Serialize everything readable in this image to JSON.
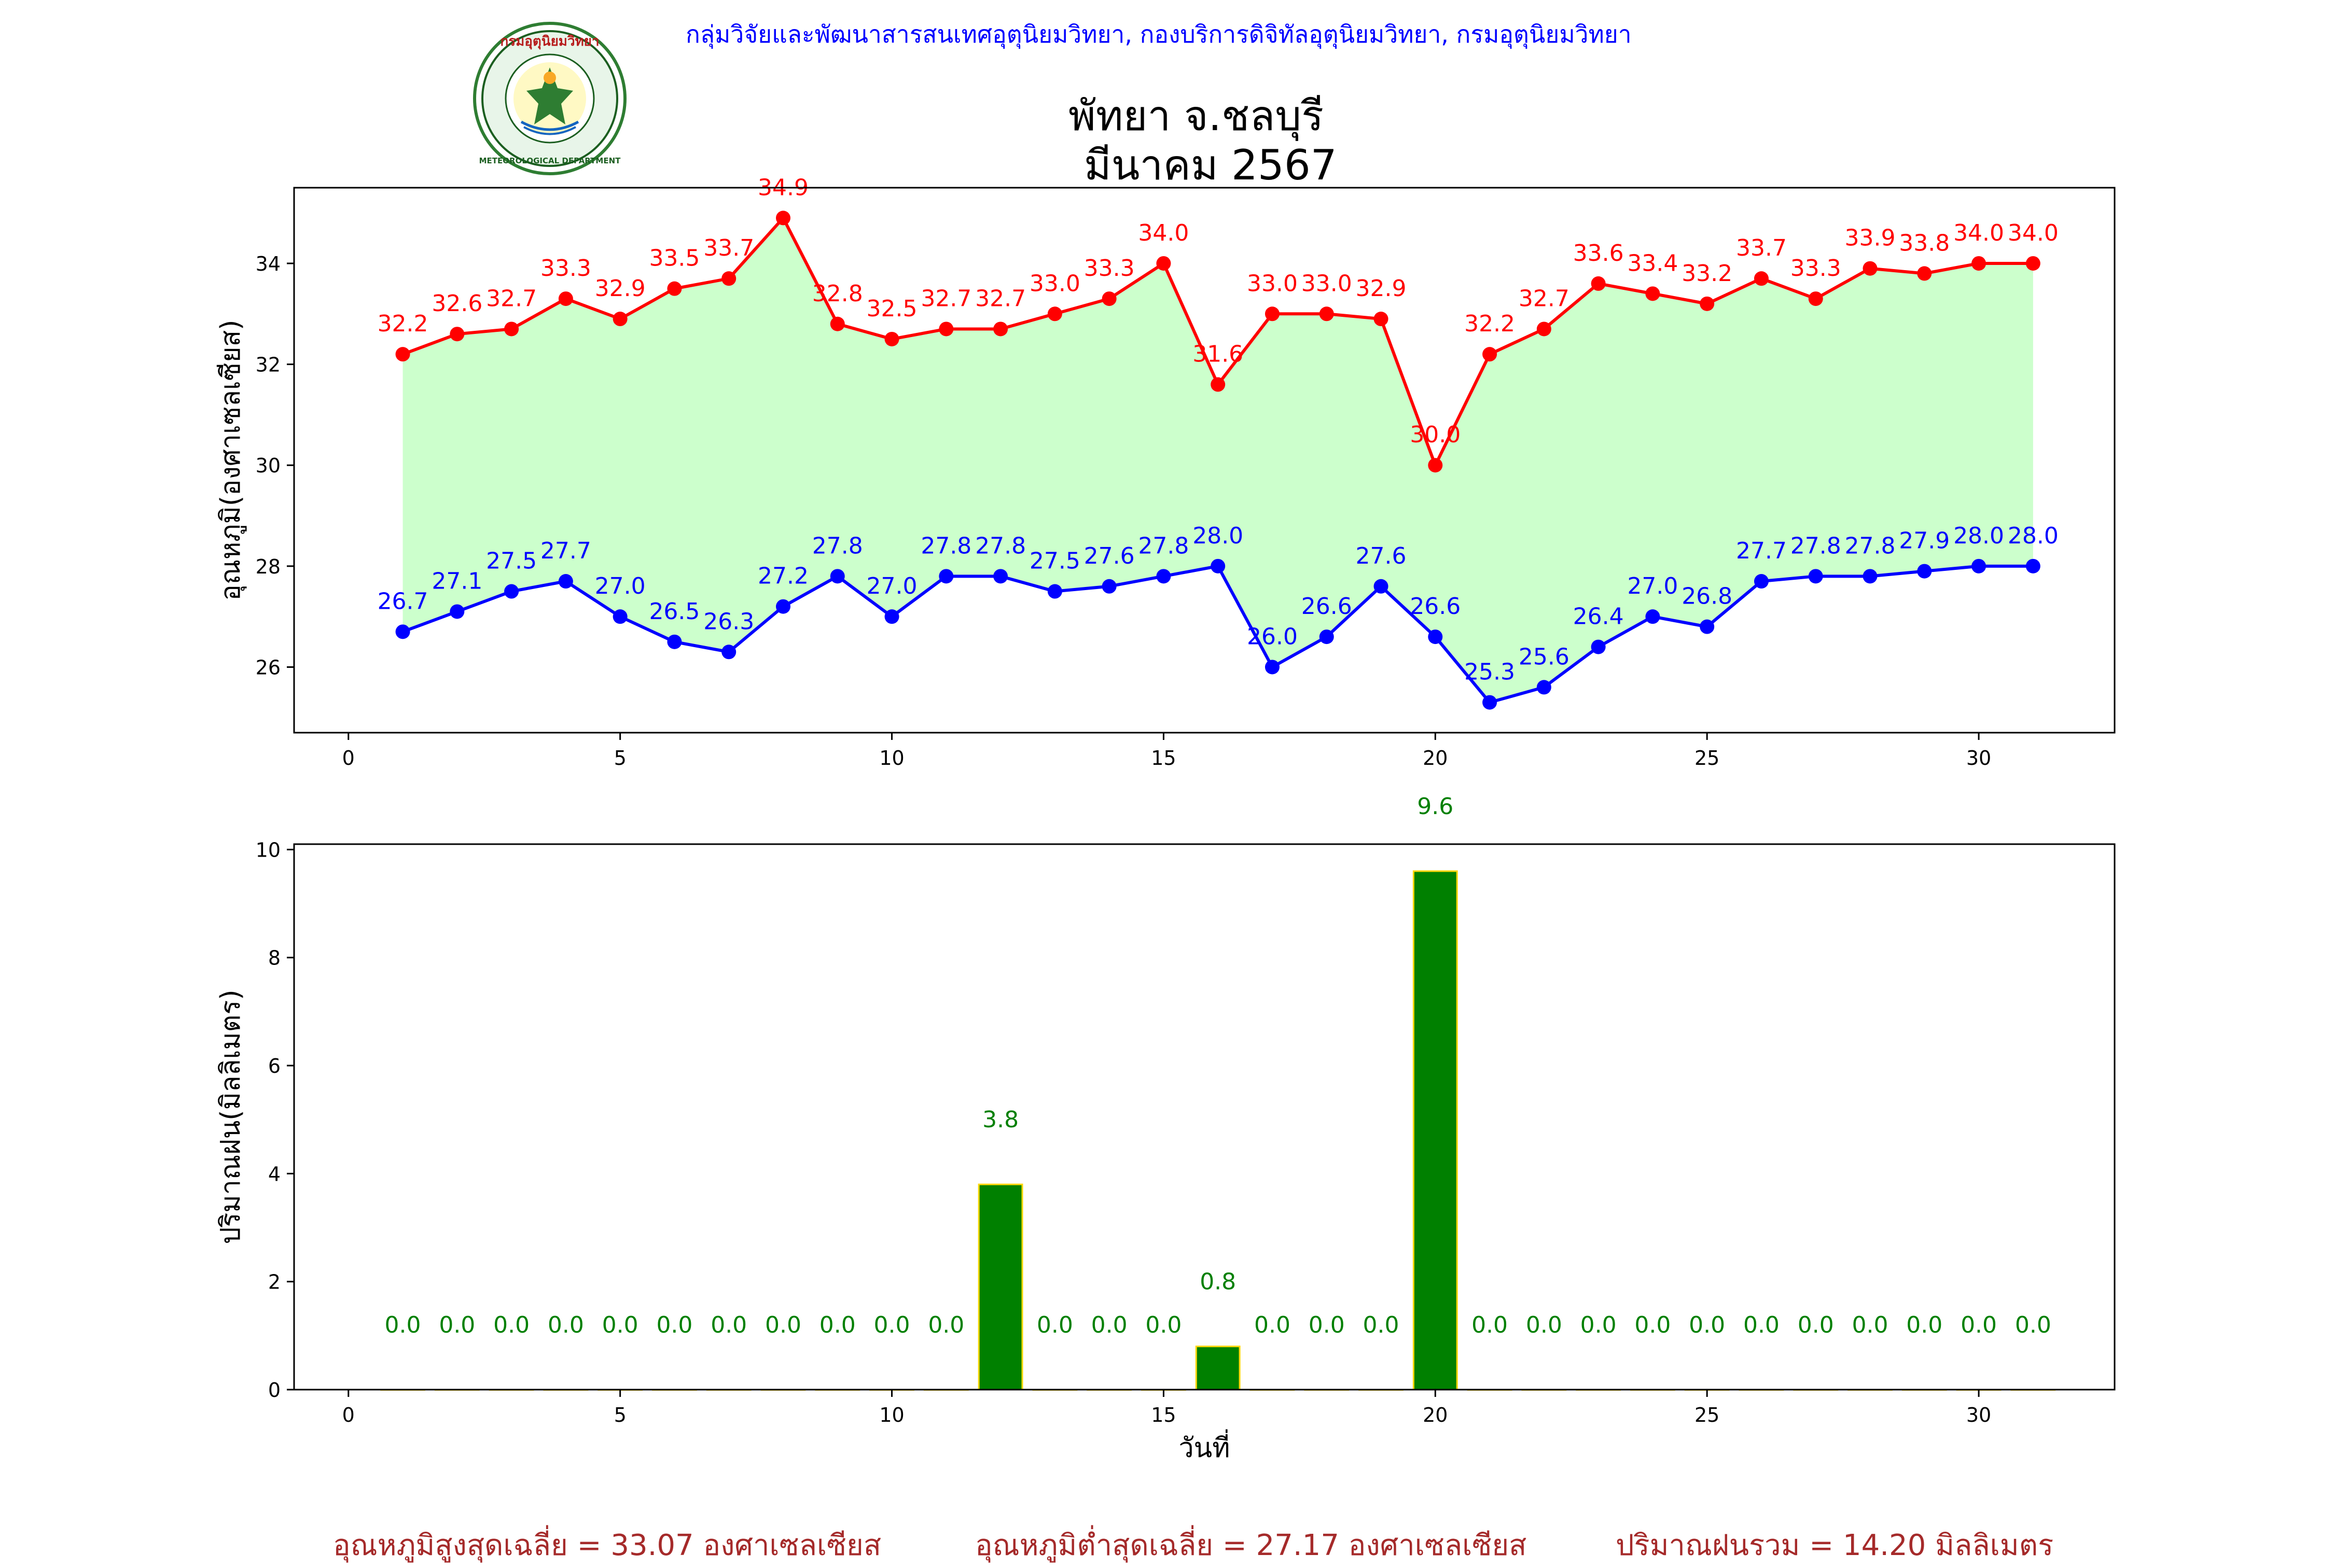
{
  "header": {
    "department": "กลุ่มวิจัยและพัฒนาสารสนเทศอุตุนิยมวิทยา, กองบริการดิจิทัลอุตุนิยมวิทยา, กรมอุตุนิยมวิทยา",
    "title_line1": "พัทยา จ.ชลบุรี",
    "title_line2": "มีนาคม 2567",
    "logo_top_text": "กรมอุตุนิยมวิทยา",
    "logo_bottom_text": "METEOROLOGICAL DEPARTMENT"
  },
  "summary": {
    "max_avg": "อุณหภูมิสูงสุดเฉลี่ย = 33.07 องศาเซลเซียส",
    "min_avg": "อุณหภูมิต่ำสุดเฉลี่ย = 27.17 องศาเซลเซียส",
    "rain_total": "ปริมาณฝนรวม = 14.20 มิลลิเมตร"
  },
  "chart_data": [
    {
      "type": "line",
      "ylabel": "อุณหภูมิ(องศาเซลเซียส)",
      "xlim": [
        -1,
        32.5
      ],
      "ylim": [
        24.7,
        35.5
      ],
      "xticks": [
        0,
        5,
        10,
        15,
        20,
        25,
        30
      ],
      "yticks": [
        26,
        28,
        30,
        32,
        34
      ],
      "x": [
        1,
        2,
        3,
        4,
        5,
        6,
        7,
        8,
        9,
        10,
        11,
        12,
        13,
        14,
        15,
        16,
        17,
        18,
        19,
        20,
        21,
        22,
        23,
        24,
        25,
        26,
        27,
        28,
        29,
        30,
        31
      ],
      "series": [
        {
          "key": "max",
          "color": "#ff0000",
          "values": [
            32.2,
            32.6,
            32.7,
            33.3,
            32.9,
            33.5,
            33.7,
            34.9,
            32.8,
            32.5,
            32.7,
            32.7,
            33.0,
            33.3,
            34.0,
            31.6,
            33.0,
            33.0,
            32.9,
            30.0,
            32.2,
            32.7,
            33.6,
            33.4,
            33.2,
            33.7,
            33.3,
            33.9,
            33.8,
            34.0,
            34.0
          ]
        },
        {
          "key": "min",
          "color": "#0000ff",
          "values": [
            26.7,
            27.1,
            27.5,
            27.7,
            27.0,
            26.5,
            26.3,
            27.2,
            27.8,
            27.0,
            27.8,
            27.8,
            27.5,
            27.6,
            27.8,
            28.0,
            26.0,
            26.6,
            27.6,
            26.6,
            25.3,
            25.6,
            26.4,
            27.0,
            26.8,
            27.7,
            27.8,
            27.8,
            27.9,
            28.0,
            28.0
          ]
        }
      ],
      "fill_color": "#ccffcc"
    },
    {
      "type": "bar",
      "xlabel": "วันที่",
      "ylabel": "ปริมาณฝน(มิลลิเมตร)",
      "xlim": [
        -1,
        32.5
      ],
      "ylim": [
        0,
        10.1
      ],
      "xticks": [
        0,
        5,
        10,
        15,
        20,
        25,
        30
      ],
      "yticks": [
        0,
        2,
        4,
        6,
        8,
        10
      ],
      "bar_color": "#008000",
      "edge_color": "#ffd700",
      "x": [
        1,
        2,
        3,
        4,
        5,
        6,
        7,
        8,
        9,
        10,
        11,
        12,
        13,
        14,
        15,
        16,
        17,
        18,
        19,
        20,
        21,
        22,
        23,
        24,
        25,
        26,
        27,
        28,
        29,
        30,
        31
      ],
      "values": [
        0.0,
        0.0,
        0.0,
        0.0,
        0.0,
        0.0,
        0.0,
        0.0,
        0.0,
        0.0,
        0.0,
        3.8,
        0.0,
        0.0,
        0.0,
        0.8,
        0.0,
        0.0,
        0.0,
        9.6,
        0.0,
        0.0,
        0.0,
        0.0,
        0.0,
        0.0,
        0.0,
        0.0,
        0.0,
        0.0,
        0.0
      ]
    }
  ]
}
